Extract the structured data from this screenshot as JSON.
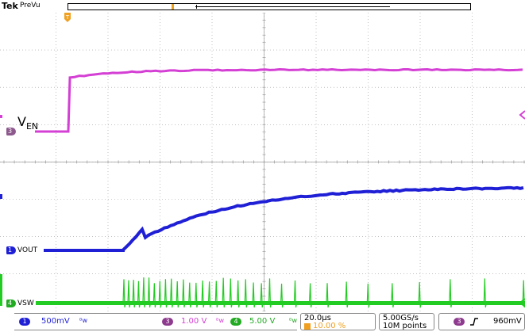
{
  "header": {
    "brand": "Tek",
    "status": "PreVu"
  },
  "trigger_marker_label": "T",
  "signal_labels": {
    "ven_main": "V",
    "ven_sub": "EN",
    "vout": "VOUT",
    "vsw": "VSW"
  },
  "channel_markers": {
    "ch1": "1",
    "ch3": "3",
    "ch4": "4"
  },
  "bottom": {
    "ch1_badge": "1",
    "ch1_scale": "500mV",
    "ch1_bw": "ᴮw",
    "ch3_badge": "3",
    "ch3_scale": "1.00 V",
    "ch3_bw": "ᴮw",
    "ch4_badge": "4",
    "ch4_scale": "5.00 V",
    "ch4_bw": "ᴮw",
    "timebase": "20.0µs",
    "trigger_pos": "10.00 %",
    "sample_rate": "5.00GS/s",
    "record_length": "10M points",
    "trig_source_badge": "3",
    "trig_level": "960mV"
  },
  "colors": {
    "ch1": "#1f1fd6",
    "ch3": "#d43fd4",
    "ch4": "#22cc22",
    "grid": "#9a9a9a",
    "trigger": "#f0a020",
    "marker_ch3": "#8e5a8e"
  }
}
